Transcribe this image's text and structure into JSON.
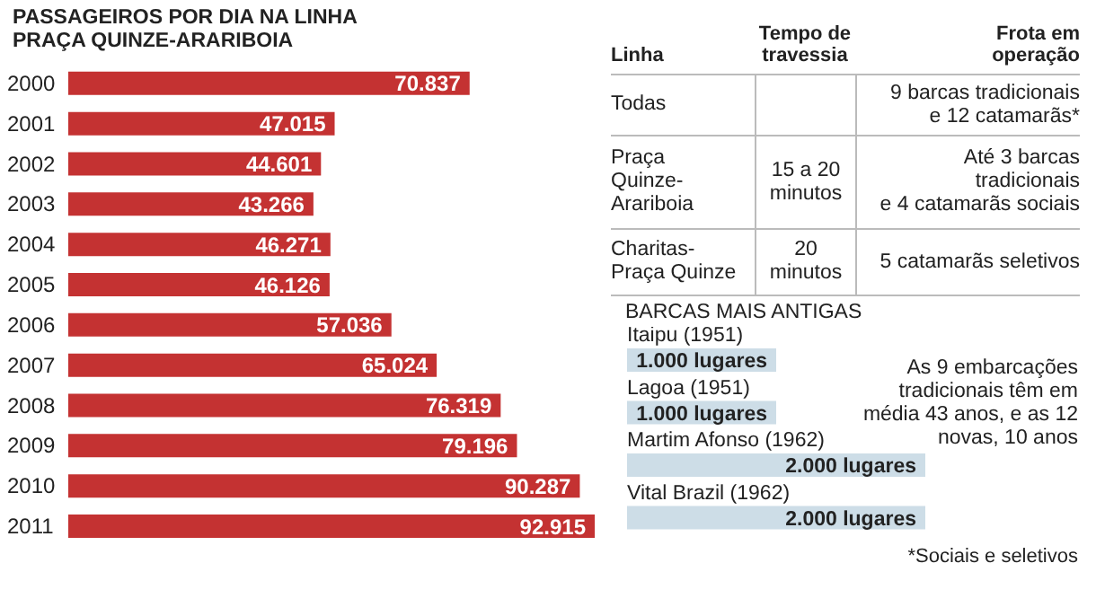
{
  "chart_data": [
    {
      "type": "bar",
      "orientation": "horizontal",
      "title": "PASSAGEIROS POR DIA NA LINHA\nPRAÇA QUINZE-ARARIBOIA",
      "categories": [
        "2000",
        "2001",
        "2002",
        "2003",
        "2004",
        "2005",
        "2006",
        "2007",
        "2008",
        "2009",
        "2010",
        "2011"
      ],
      "values": [
        70837,
        47015,
        44601,
        43266,
        46271,
        46126,
        57036,
        65024,
        76319,
        79196,
        90287,
        92915
      ],
      "value_labels": [
        "70.837",
        "47.015",
        "44.601",
        "43.266",
        "46.271",
        "46.126",
        "57.036",
        "65.024",
        "76.319",
        "79.196",
        "90.287",
        "92.915"
      ],
      "color": "#c43232"
    },
    {
      "type": "other",
      "annotations": [
        "Linha",
        "Tempo de\ntravessia",
        "Frota em\noperação",
        "Todas",
        null,
        "9 barcas tradicionais\ne 12 catamarãs*",
        "Praça\nQuinze-\nArariboia",
        "15 a 20\nminutos",
        "Até 3 barcas tradicionais\ne 4 catamarãs sociais",
        "Charitas-\nPraça Quinze",
        "20\nminutos",
        "5 catamarãs seletivos"
      ]
    },
    {
      "type": "bar",
      "orientation": "horizontal",
      "title": "BARCAS MAIS ANTIGAS",
      "categories": [
        "Itaipu (1951)",
        "Lagoa (1951)",
        "Martim Afonso (1962)",
        "Vital Brazil (1962)"
      ],
      "values": [
        1000,
        1000,
        2000,
        2000
      ],
      "value_labels": [
        "1.000 lugares",
        "1.000 lugares",
        "2.000 lugares",
        "2.000 lugares"
      ],
      "color": "#cddde7",
      "annotations": [
        "As 9 embarcações tradicionais têm em média 43 anos, e as 12 novas, 10 anos",
        "*Sociais e seletivos"
      ]
    }
  ]
}
